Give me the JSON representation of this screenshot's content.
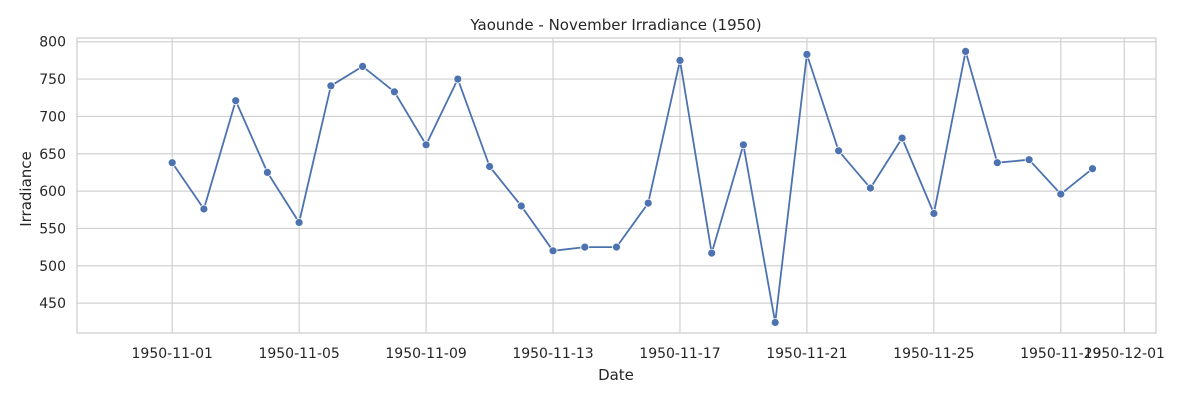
{
  "chart_data": {
    "type": "line",
    "title": "Yaounde - November Irradiance (1950)",
    "xlabel": "Date",
    "ylabel": "Irradiance",
    "x_ticks": [
      "1950-11-01",
      "1950-11-05",
      "1950-11-09",
      "1950-11-13",
      "1950-11-17",
      "1950-11-21",
      "1950-11-25",
      "1950-11-29",
      "1950-12-01"
    ],
    "y_ticks": [
      450,
      500,
      550,
      600,
      650,
      700,
      750,
      800
    ],
    "xlim": [
      "1950-10-29",
      "1950-12-02"
    ],
    "ylim": [
      410,
      805
    ],
    "grid": true,
    "colors": {
      "line": "#4c72b0",
      "marker": "#4c72b0",
      "grid": "#d0d0d0"
    },
    "series": [
      {
        "x": [
          "1950-11-01",
          "1950-11-02",
          "1950-11-03",
          "1950-11-04",
          "1950-11-05",
          "1950-11-06",
          "1950-11-07",
          "1950-11-08",
          "1950-11-09",
          "1950-11-10",
          "1950-11-11",
          "1950-11-12",
          "1950-11-13",
          "1950-11-14",
          "1950-11-15",
          "1950-11-16",
          "1950-11-17",
          "1950-11-18",
          "1950-11-19",
          "1950-11-20",
          "1950-11-21",
          "1950-11-22",
          "1950-11-23",
          "1950-11-24",
          "1950-11-25",
          "1950-11-26",
          "1950-11-27",
          "1950-11-28",
          "1950-11-29",
          "1950-11-30"
        ],
        "values": [
          638,
          576,
          721,
          625,
          558,
          741,
          767,
          733,
          662,
          750,
          633,
          580,
          520,
          525,
          525,
          584,
          775,
          517,
          662,
          424,
          783,
          654,
          604,
          671,
          570,
          787,
          638,
          642,
          596,
          630
        ]
      }
    ]
  }
}
